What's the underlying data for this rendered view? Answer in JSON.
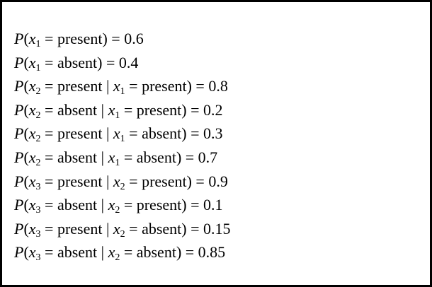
{
  "lines": [
    [
      {
        "text": "P",
        "style": "italic"
      },
      {
        "text": "("
      },
      {
        "text": "x",
        "style": "italic"
      },
      {
        "text": "1",
        "style": "sub"
      },
      {
        "text": " = present) = 0.6"
      }
    ],
    [
      {
        "text": "P",
        "style": "italic"
      },
      {
        "text": "("
      },
      {
        "text": "x",
        "style": "italic"
      },
      {
        "text": "1",
        "style": "sub"
      },
      {
        "text": " = absent) = 0.4"
      }
    ],
    [
      {
        "text": "P",
        "style": "italic"
      },
      {
        "text": "("
      },
      {
        "text": "x",
        "style": "italic"
      },
      {
        "text": "2",
        "style": "sub"
      },
      {
        "text": " = present | "
      },
      {
        "text": "x",
        "style": "italic"
      },
      {
        "text": "1",
        "style": "sub"
      },
      {
        "text": " = present) = 0.8"
      }
    ],
    [
      {
        "text": "P",
        "style": "italic"
      },
      {
        "text": "("
      },
      {
        "text": "x",
        "style": "italic"
      },
      {
        "text": "2",
        "style": "sub"
      },
      {
        "text": " = absent | "
      },
      {
        "text": "x",
        "style": "italic"
      },
      {
        "text": "1",
        "style": "sub"
      },
      {
        "text": " = present) = 0.2"
      }
    ],
    [
      {
        "text": "P",
        "style": "italic"
      },
      {
        "text": "("
      },
      {
        "text": "x",
        "style": "italic"
      },
      {
        "text": "2",
        "style": "sub"
      },
      {
        "text": " = present | "
      },
      {
        "text": "x",
        "style": "italic"
      },
      {
        "text": "1",
        "style": "sub"
      },
      {
        "text": " = absent) = 0.3"
      }
    ],
    [
      {
        "text": "P",
        "style": "italic"
      },
      {
        "text": "("
      },
      {
        "text": "x",
        "style": "italic"
      },
      {
        "text": "2",
        "style": "sub"
      },
      {
        "text": " = absent | "
      },
      {
        "text": "x",
        "style": "italic"
      },
      {
        "text": "1",
        "style": "sub"
      },
      {
        "text": " = absent) = 0.7"
      }
    ],
    [
      {
        "text": "P",
        "style": "italic"
      },
      {
        "text": "("
      },
      {
        "text": "x",
        "style": "italic"
      },
      {
        "text": "3",
        "style": "sub"
      },
      {
        "text": " = present | "
      },
      {
        "text": "x",
        "style": "italic"
      },
      {
        "text": "2",
        "style": "sub"
      },
      {
        "text": " = present) = 0.9"
      }
    ],
    [
      {
        "text": "P",
        "style": "italic"
      },
      {
        "text": "("
      },
      {
        "text": "x",
        "style": "italic"
      },
      {
        "text": "3",
        "style": "sub"
      },
      {
        "text": " = absent | "
      },
      {
        "text": "x",
        "style": "italic"
      },
      {
        "text": "2",
        "style": "sub"
      },
      {
        "text": " = present) = 0.1"
      }
    ],
    [
      {
        "text": "P",
        "style": "italic"
      },
      {
        "text": "("
      },
      {
        "text": "x",
        "style": "italic"
      },
      {
        "text": "3",
        "style": "sub"
      },
      {
        "text": " = present | "
      },
      {
        "text": "x",
        "style": "italic"
      },
      {
        "text": "2",
        "style": "sub"
      },
      {
        "text": " = absent) = 0.15"
      }
    ],
    [
      {
        "text": "P",
        "style": "italic"
      },
      {
        "text": "("
      },
      {
        "text": "x",
        "style": "italic"
      },
      {
        "text": "3",
        "style": "sub"
      },
      {
        "text": " = absent | "
      },
      {
        "text": "x",
        "style": "italic"
      },
      {
        "text": "2",
        "style": "sub"
      },
      {
        "text": " = absent) = 0.85"
      }
    ]
  ]
}
